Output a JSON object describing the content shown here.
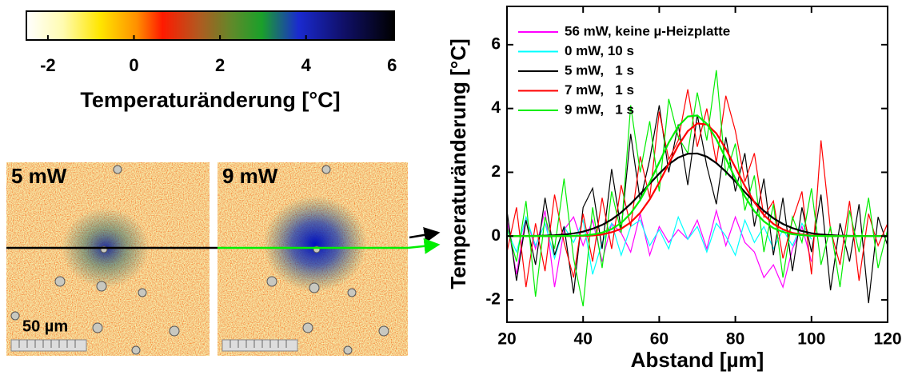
{
  "chart_data": [
    {
      "type": "line",
      "xlabel": "Abstand [µm]",
      "ylabel": "Temperaturänderung [°C]",
      "xlim": [
        20,
        120
      ],
      "xticks": [
        20,
        40,
        60,
        80,
        100,
        120
      ],
      "ylim": [
        -2.7,
        7.2
      ],
      "yticks": [
        -2,
        0,
        2,
        4,
        6
      ],
      "legend": "upper left",
      "x": [
        20,
        22.5,
        25,
        27.5,
        30,
        32.5,
        35,
        37.5,
        40,
        42.5,
        45,
        47.5,
        50,
        52.5,
        55,
        57.5,
        60,
        62.5,
        65,
        67.5,
        70,
        72.5,
        75,
        77.5,
        80,
        82.5,
        85,
        87.5,
        90,
        92.5,
        95,
        97.5,
        100,
        102.5,
        105,
        107.5,
        110,
        112.5,
        115,
        117.5,
        120
      ],
      "series": [
        {
          "name": "56 mW, keine µ-Heizplatte",
          "color": "#ff00ff",
          "values": [
            0.5,
            -1.2,
            0.6,
            -0.4,
            0.8,
            -1.6,
            0.2,
            0.6,
            -0.3,
            0.5,
            -0.8,
            0.4,
            0.1,
            -0.5,
            0.7,
            -0.6,
            0.3,
            -0.2,
            0.2,
            -0.1,
            0.5,
            -0.4,
            0.8,
            -0.3,
            0.6,
            -0.2,
            -0.5,
            -1.3,
            -0.9,
            -1.6,
            -0.4,
            0.3,
            -0.8,
            null,
            null,
            null,
            null,
            null,
            null,
            null,
            null
          ]
        },
        {
          "name": "0 mW, 10 s",
          "color": "#00ffff",
          "values": [
            0.2,
            -0.5,
            0.6,
            -0.3,
            0.4,
            -0.7,
            0.3,
            -0.2,
            0.5,
            -1.2,
            -0.2,
            0.4,
            -0.6,
            0.3,
            0.5,
            -0.3,
            0.2,
            -0.4,
            0.6,
            -0.1,
            0.3,
            -0.5,
            0.4,
            0.0,
            -0.6,
            0.5,
            -0.2,
            0.3,
            -0.4,
            0.2,
            -0.3,
            0.4,
            -0.1,
            null,
            null,
            null,
            null,
            null,
            null,
            null,
            null
          ]
        },
        {
          "name": "5 mW,   1 s",
          "color": "#000000",
          "values": [
            0.8,
            -1.4,
            0.5,
            -0.9,
            1.2,
            -0.6,
            0.3,
            -1.8,
            0.9,
            1.5,
            -0.4,
            2.1,
            0.2,
            3.2,
            1.1,
            2.4,
            4.1,
            2.0,
            3.5,
            1.6,
            3.8,
            2.2,
            1.0,
            3.1,
            1.4,
            2.6,
            0.3,
            1.8,
            -0.6,
            1.2,
            -1.1,
            0.9,
            -0.5,
            1.3,
            -1.7,
            0.4,
            -0.8,
            1.0,
            -2.1,
            0.6,
            -0.3
          ],
          "fit": [
            0,
            0,
            0.003,
            0.007,
            0.013,
            0.025,
            0.047,
            0.083,
            0.14,
            0.23,
            0.35,
            0.52,
            0.74,
            1.01,
            1.32,
            1.64,
            1.96,
            2.25,
            2.46,
            2.58,
            2.59,
            2.49,
            2.29,
            2.02,
            1.71,
            1.38,
            1.07,
            0.79,
            0.56,
            0.38,
            0.25,
            0.16,
            0.09,
            0.05,
            0.03,
            0.015,
            0.007,
            0.004,
            0.002,
            0.001,
            0
          ]
        },
        {
          "name": "7 mW,   1 s",
          "color": "#ff0000",
          "values": [
            -0.5,
            0.9,
            -1.6,
            0.4,
            -1.1,
            1.3,
            -0.2,
            -1.3,
            0.7,
            -0.8,
            1.2,
            -0.4,
            1.6,
            0.3,
            2.5,
            1.2,
            3.9,
            2.4,
            3.0,
            4.6,
            2.8,
            4.0,
            2.3,
            4.4,
            3.3,
            1.7,
            2.6,
            0.6,
            1.1,
            -0.7,
            0.5,
            1.4,
            -1.2,
            3.0,
            0.2,
            -0.9,
            1.1,
            -1.4,
            0.7,
            -0.3,
            0.4
          ],
          "fit": [
            0,
            0,
            0,
            0,
            0,
            0,
            0.001,
            0.003,
            0.01,
            0.02,
            0.05,
            0.12,
            0.23,
            0.43,
            0.73,
            1.15,
            1.68,
            2.27,
            2.84,
            3.29,
            3.53,
            3.5,
            3.22,
            2.73,
            2.15,
            1.57,
            1.06,
            0.66,
            0.38,
            0.21,
            0.1,
            0.05,
            0.02,
            0.008,
            0.003,
            0,
            0,
            0,
            0,
            0,
            0
          ]
        },
        {
          "name": "9 mW,   1 s",
          "color": "#00ee00",
          "values": [
            0.3,
            -0.8,
            1.1,
            -1.9,
            0.6,
            -0.4,
            1.8,
            -0.7,
            -2.2,
            0.9,
            -1.0,
            1.4,
            0.1,
            4.1,
            2.0,
            3.6,
            1.4,
            4.3,
            3.1,
            2.6,
            4.5,
            3.0,
            5.2,
            1.9,
            2.9,
            0.8,
            1.9,
            -0.5,
            1.0,
            -1.3,
            0.6,
            -0.2,
            1.5,
            -0.9,
            0.3,
            -1.6,
            0.8,
            -0.5,
            1.2,
            -1.0,
            0.2
          ],
          "fit": [
            0,
            0,
            0,
            0,
            0,
            0,
            0.003,
            0.008,
            0.02,
            0.05,
            0.11,
            0.22,
            0.41,
            0.71,
            1.13,
            1.68,
            2.31,
            2.93,
            3.44,
            3.75,
            3.78,
            3.52,
            3.04,
            2.43,
            1.8,
            1.24,
            0.78,
            0.46,
            0.25,
            0.13,
            0.06,
            0.03,
            0.01,
            0.004,
            0,
            0,
            0,
            0,
            0,
            0,
            0
          ]
        }
      ]
    },
    {
      "type": "colorbar",
      "xlabel": "Temperaturänderung [°C]",
      "xlim": [
        -2.5,
        6.05
      ],
      "xticks": [
        -2,
        0,
        2,
        4,
        6
      ]
    }
  ],
  "images": {
    "panels": [
      {
        "label": "5 mW"
      },
      {
        "label": "9 mW"
      }
    ],
    "scale_bar": "50 µm"
  }
}
